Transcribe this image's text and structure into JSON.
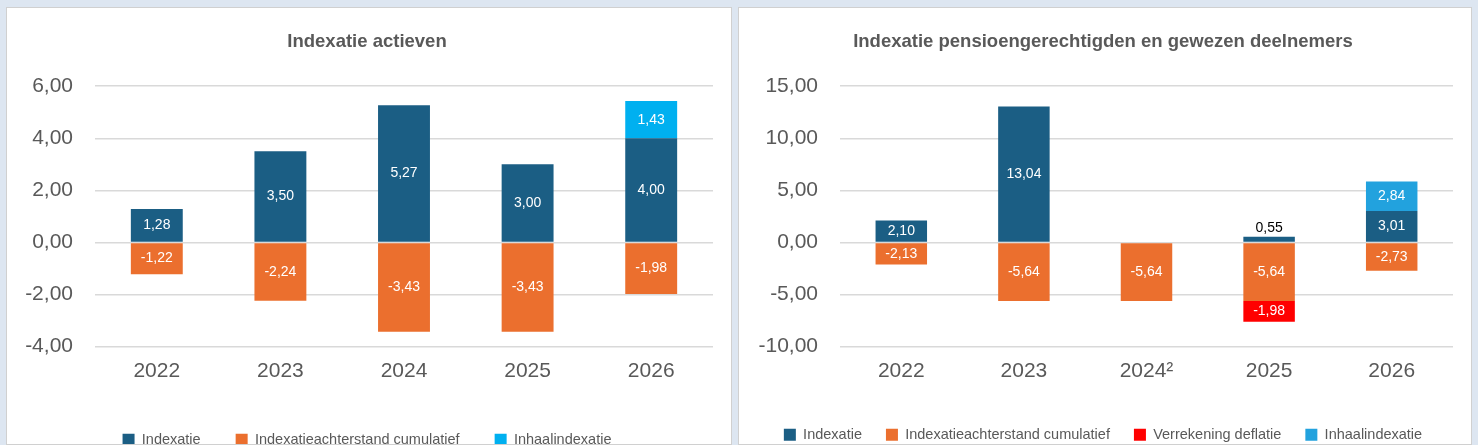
{
  "chart_data": [
    {
      "type": "bar",
      "title": "Indexatie actieven",
      "categories": [
        "2022",
        "2023",
        "2024",
        "2025",
        "2026"
      ],
      "stacked": true,
      "grid": "y",
      "legend": "bottom",
      "ylim": [
        -4,
        6
      ],
      "yticks": [
        {
          "value": -4,
          "label": "-4,00"
        },
        {
          "value": -2,
          "label": "-2,00"
        },
        {
          "value": 0,
          "label": "0,00"
        },
        {
          "value": 2,
          "label": "2,00"
        },
        {
          "value": 4,
          "label": "4,00"
        },
        {
          "value": 6,
          "label": "6,00"
        }
      ],
      "series": [
        {
          "name": "Indexatie",
          "color": "#1b5e84",
          "values": [
            1.28,
            3.5,
            5.27,
            3.0,
            4.0
          ],
          "value_labels": [
            "1,28",
            "3,50",
            "5,27",
            "3,00",
            "4,00"
          ]
        },
        {
          "name": "Indexatieachterstand cumulatief",
          "color": "#eb6f2e",
          "values": [
            -1.22,
            -2.24,
            -3.43,
            -3.43,
            -1.98
          ],
          "value_labels": [
            "-1,22",
            "-2,24",
            "-3,43",
            "-3,43",
            "-1,98"
          ]
        },
        {
          "name": "Inhaalindexatie",
          "color": "#00b0f0",
          "values": [
            null,
            null,
            null,
            null,
            1.43
          ],
          "value_labels": [
            null,
            null,
            null,
            null,
            "1,43"
          ]
        }
      ]
    },
    {
      "type": "bar",
      "title": "Indexatie pensioengerechtigden en gewezen deelnemers",
      "categories": [
        "2022",
        "2023",
        "2024²",
        "2025",
        "2026"
      ],
      "stacked": true,
      "grid": "y",
      "legend": "bottom",
      "ylim": [
        -10,
        15
      ],
      "yticks": [
        {
          "value": -10,
          "label": "-10,00"
        },
        {
          "value": -5,
          "label": "-5,00"
        },
        {
          "value": 0,
          "label": "0,00"
        },
        {
          "value": 5,
          "label": "5,00"
        },
        {
          "value": 10,
          "label": "10,00"
        },
        {
          "value": 15,
          "label": "15,00"
        }
      ],
      "series": [
        {
          "name": "Indexatie",
          "color": "#1b5e84",
          "values": [
            2.1,
            13.04,
            null,
            0.55,
            3.01
          ],
          "value_labels": [
            "2,10",
            "13,04",
            null,
            "0,55",
            "3,01"
          ]
        },
        {
          "name": "Indexatieachterstand cumulatief",
          "color": "#eb6f2e",
          "values": [
            -2.13,
            -5.64,
            -5.64,
            -5.64,
            -2.73
          ],
          "value_labels": [
            "-2,13",
            "-5,64",
            "-5,64",
            "-5,64",
            "-2,73"
          ]
        },
        {
          "name": "Verrekening deflatie",
          "color": "#ff0000",
          "values": [
            null,
            null,
            null,
            -1.98,
            null
          ],
          "value_labels": [
            null,
            null,
            null,
            "-1,98",
            null
          ]
        },
        {
          "name": "Inhaalindexatie",
          "color": "#22a2de",
          "values": [
            null,
            null,
            null,
            null,
            2.84
          ],
          "value_labels": [
            null,
            null,
            null,
            null,
            "2,84"
          ]
        }
      ]
    }
  ]
}
